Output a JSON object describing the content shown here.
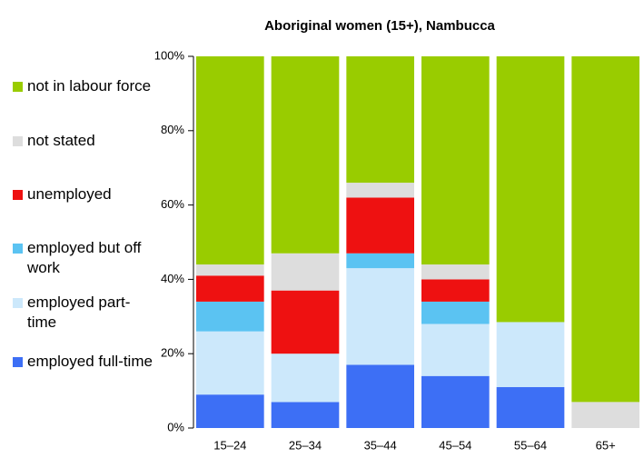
{
  "chart_data": {
    "type": "stacked_bar",
    "title": "Aboriginal women (15+), Nambucca",
    "categories": [
      "15–24",
      "25–34",
      "35–44",
      "45–54",
      "55–64",
      "65+"
    ],
    "series": [
      {
        "name": "employed full-time",
        "color": "#3d6ff5",
        "values": [
          9,
          7,
          17,
          14,
          11,
          0
        ]
      },
      {
        "name": "employed part-time",
        "color": "#cce8fb",
        "values": [
          17,
          13,
          26,
          14,
          17.5,
          0
        ]
      },
      {
        "name": "employed but off work",
        "color": "#5bc3f2",
        "values": [
          8,
          0,
          4,
          6,
          0,
          0
        ]
      },
      {
        "name": "unemployed",
        "color": "#ee1111",
        "values": [
          7,
          17,
          15,
          6,
          0,
          0
        ]
      },
      {
        "name": "not stated",
        "color": "#dddddd",
        "values": [
          3,
          10,
          4,
          4,
          0,
          7
        ]
      },
      {
        "name": "not in labour force",
        "color": "#99cc00",
        "values": [
          56,
          53,
          34,
          56,
          71.5,
          93
        ]
      }
    ],
    "ylim": [
      0,
      100
    ],
    "yticks": [
      {
        "value": 0,
        "label": "0%"
      },
      {
        "value": 20,
        "label": "20%"
      },
      {
        "value": 40,
        "label": "40%"
      },
      {
        "value": 60,
        "label": "60%"
      },
      {
        "value": 80,
        "label": "80%"
      },
      {
        "value": 100,
        "label": "100%"
      }
    ],
    "legend": "left"
  }
}
